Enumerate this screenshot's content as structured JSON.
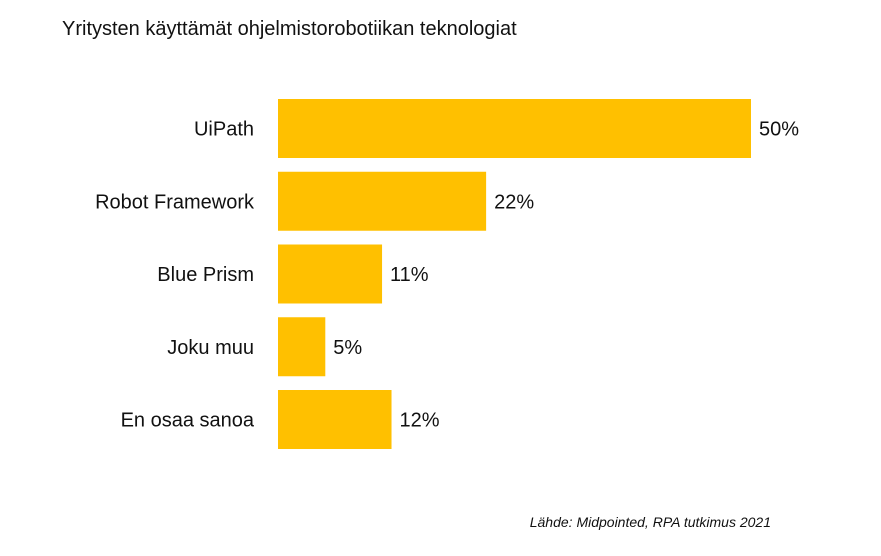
{
  "chart_data": {
    "type": "bar",
    "orientation": "horizontal",
    "title": "Yritysten käyttämät ohjelmistorobotiikan teknologiat",
    "categories": [
      "UiPath",
      "Robot Framework",
      "Blue Prism",
      "Joku muu",
      "En osaa sanoa"
    ],
    "values": [
      50,
      22,
      11,
      5,
      12
    ],
    "value_labels": [
      "50%",
      "22%",
      "11%",
      "5%",
      "12%"
    ],
    "xlim": [
      0,
      50
    ],
    "grid": false,
    "legend": "none",
    "bar_color": "#FFC000",
    "source": "Lähde: Midpointed, RPA tutkimus 2021"
  }
}
